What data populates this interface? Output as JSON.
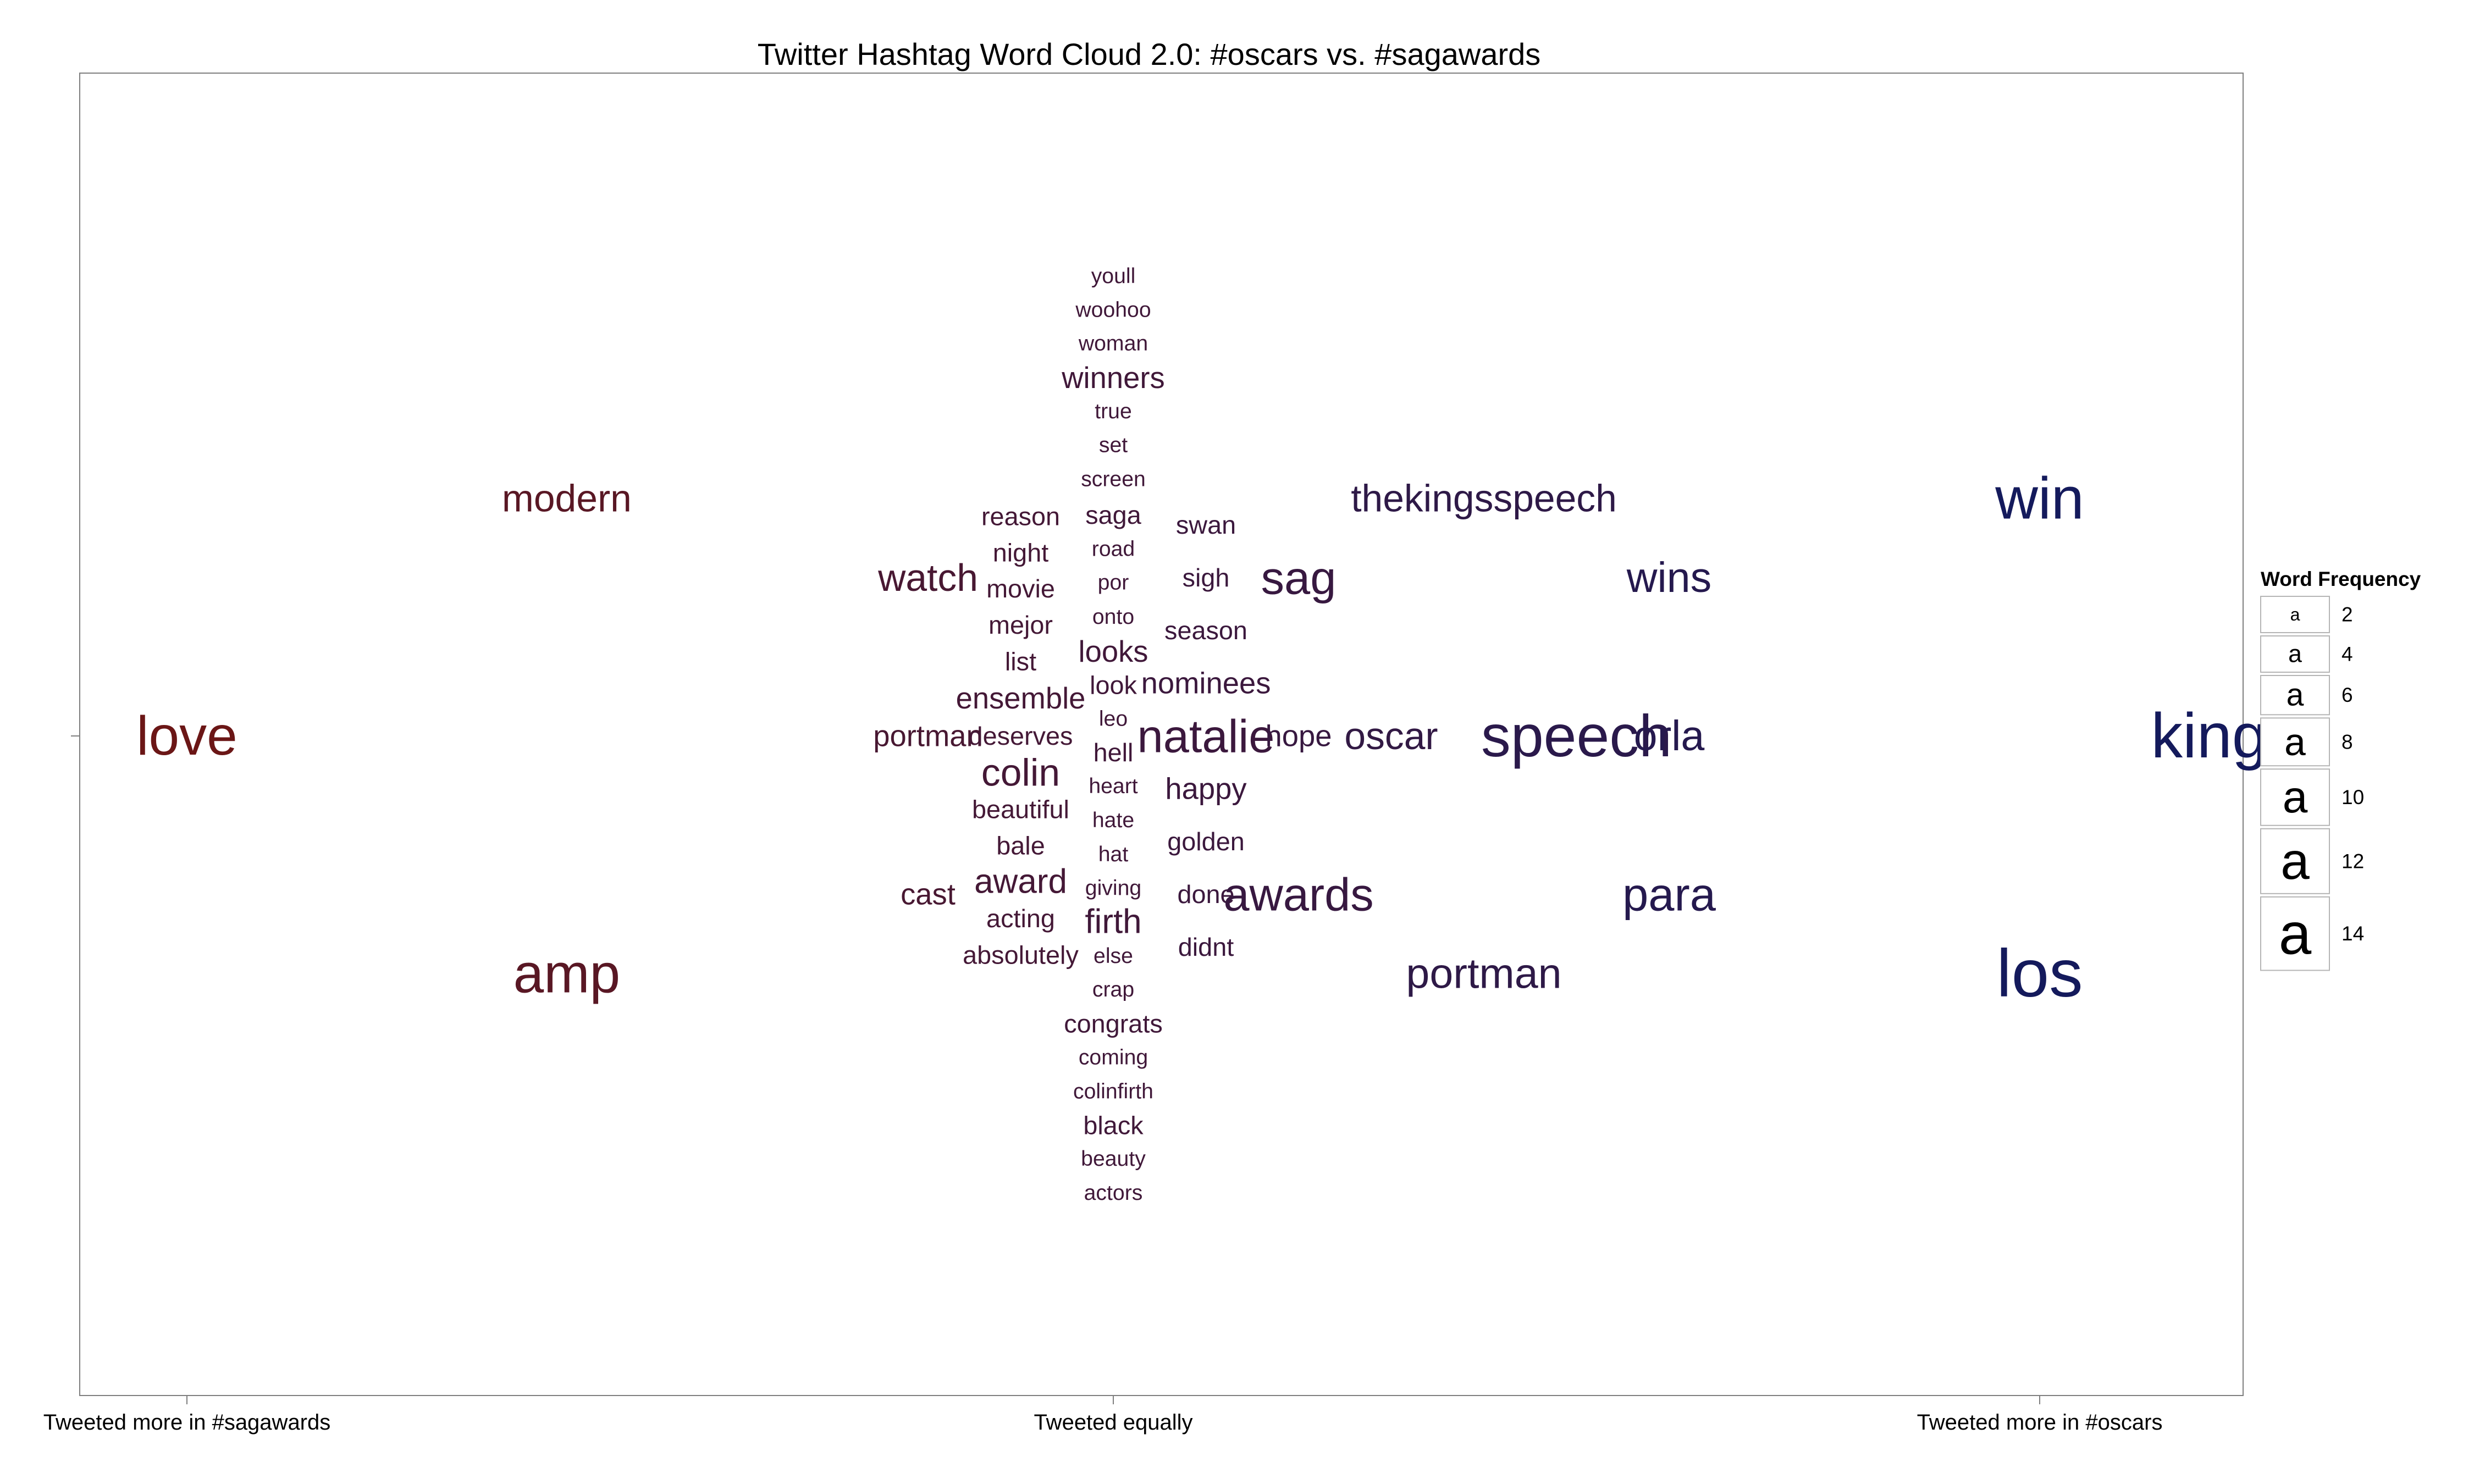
{
  "chart_data": {
    "type": "scatter",
    "title": "Twitter Hashtag Word Cloud 2.0: #oscars vs. #sagawards",
    "xlabel": "",
    "ylabel": "",
    "xlim": [
      -1.1,
      1.2
    ],
    "ylim": [
      -1.0,
      1.0
    ],
    "x_ticks": [
      {
        "value": -1,
        "label": "Tweeted more in #sagawards"
      },
      {
        "value": 0,
        "label": "Tweeted equally"
      },
      {
        "value": 1,
        "label": "Tweeted more in #oscars"
      }
    ],
    "y_ticks": [
      0
    ],
    "grid": false,
    "color_low": "#6B1616",
    "color_high": "#141A5C",
    "legend": {
      "title": "Word Frequency",
      "placement": "right",
      "entries": [
        {
          "glyph": "a",
          "value": 2
        },
        {
          "glyph": "a",
          "value": 4
        },
        {
          "glyph": "a",
          "value": 6
        },
        {
          "glyph": "a",
          "value": 8
        },
        {
          "glyph": "a",
          "value": 10
        },
        {
          "glyph": "a",
          "value": 12
        },
        {
          "glyph": "a",
          "value": 14
        }
      ]
    },
    "words": [
      {
        "text": "love",
        "x": -1.0,
        "y": 0.0,
        "freq": 10
      },
      {
        "text": "amp",
        "x": -0.59,
        "y": -0.473,
        "freq": 10
      },
      {
        "text": "modern",
        "x": -0.59,
        "y": 0.473,
        "freq": 6
      },
      {
        "text": "watch",
        "x": -0.2,
        "y": 0.315,
        "freq": 6
      },
      {
        "text": "cast",
        "x": -0.2,
        "y": -0.315,
        "freq": 4
      },
      {
        "text": "portman",
        "x": -0.2,
        "y": 0.0,
        "freq": 4
      },
      {
        "text": "reason",
        "x": -0.1,
        "y": 0.437,
        "freq": 3
      },
      {
        "text": "night",
        "x": -0.1,
        "y": 0.365,
        "freq": 3
      },
      {
        "text": "movie",
        "x": -0.1,
        "y": 0.293,
        "freq": 3
      },
      {
        "text": "mejor",
        "x": -0.1,
        "y": 0.221,
        "freq": 3
      },
      {
        "text": "list",
        "x": -0.1,
        "y": 0.148,
        "freq": 3
      },
      {
        "text": "ensemble",
        "x": -0.1,
        "y": 0.075,
        "freq": 4
      },
      {
        "text": "deserves",
        "x": -0.1,
        "y": 0.0,
        "freq": 3
      },
      {
        "text": "colin",
        "x": -0.1,
        "y": -0.073,
        "freq": 6
      },
      {
        "text": "beautiful",
        "x": -0.1,
        "y": -0.146,
        "freq": 3
      },
      {
        "text": "bale",
        "x": -0.1,
        "y": -0.218,
        "freq": 3
      },
      {
        "text": "award",
        "x": -0.1,
        "y": -0.29,
        "freq": 5
      },
      {
        "text": "acting",
        "x": -0.1,
        "y": -0.363,
        "freq": 3
      },
      {
        "text": "absolutely",
        "x": -0.1,
        "y": -0.436,
        "freq": 3
      },
      {
        "text": "youll",
        "x": 0.0,
        "y": 0.915,
        "freq": 2
      },
      {
        "text": "woohoo",
        "x": 0.0,
        "y": 0.848,
        "freq": 2
      },
      {
        "text": "woman",
        "x": 0.0,
        "y": 0.781,
        "freq": 2
      },
      {
        "text": "winners",
        "x": 0.0,
        "y": 0.713,
        "freq": 4
      },
      {
        "text": "true",
        "x": 0.0,
        "y": 0.646,
        "freq": 2
      },
      {
        "text": "set",
        "x": 0.0,
        "y": 0.579,
        "freq": 2
      },
      {
        "text": "screen",
        "x": 0.0,
        "y": 0.511,
        "freq": 2
      },
      {
        "text": "saga",
        "x": 0.0,
        "y": 0.44,
        "freq": 3
      },
      {
        "text": "road",
        "x": 0.0,
        "y": 0.372,
        "freq": 2
      },
      {
        "text": "por",
        "x": 0.0,
        "y": 0.305,
        "freq": 2
      },
      {
        "text": "onto",
        "x": 0.0,
        "y": 0.237,
        "freq": 2
      },
      {
        "text": "looks",
        "x": 0.0,
        "y": 0.168,
        "freq": 4
      },
      {
        "text": "look",
        "x": 0.0,
        "y": 0.101,
        "freq": 3
      },
      {
        "text": "leo",
        "x": 0.0,
        "y": 0.034,
        "freq": 2
      },
      {
        "text": "hell",
        "x": 0.0,
        "y": -0.033,
        "freq": 3
      },
      {
        "text": "heart",
        "x": 0.0,
        "y": -0.1,
        "freq": 2
      },
      {
        "text": "hate",
        "x": 0.0,
        "y": -0.168,
        "freq": 2
      },
      {
        "text": "hat",
        "x": 0.0,
        "y": -0.236,
        "freq": 2
      },
      {
        "text": "giving",
        "x": 0.0,
        "y": -0.303,
        "freq": 2
      },
      {
        "text": "firth",
        "x": 0.0,
        "y": -0.37,
        "freq": 5
      },
      {
        "text": "else",
        "x": 0.0,
        "y": -0.438,
        "freq": 2
      },
      {
        "text": "crap",
        "x": 0.0,
        "y": -0.505,
        "freq": 2
      },
      {
        "text": "congrats",
        "x": 0.0,
        "y": -0.573,
        "freq": 3
      },
      {
        "text": "coming",
        "x": 0.0,
        "y": -0.64,
        "freq": 2
      },
      {
        "text": "colinfirth",
        "x": 0.0,
        "y": -0.708,
        "freq": 2
      },
      {
        "text": "black",
        "x": 0.0,
        "y": -0.775,
        "freq": 3
      },
      {
        "text": "beauty",
        "x": 0.0,
        "y": -0.842,
        "freq": 2
      },
      {
        "text": "actors",
        "x": 0.0,
        "y": -0.91,
        "freq": 2
      },
      {
        "text": "swan",
        "x": 0.1,
        "y": 0.42,
        "freq": 3
      },
      {
        "text": "sigh",
        "x": 0.1,
        "y": 0.315,
        "freq": 3
      },
      {
        "text": "season",
        "x": 0.1,
        "y": 0.21,
        "freq": 3
      },
      {
        "text": "nominees",
        "x": 0.1,
        "y": 0.105,
        "freq": 4
      },
      {
        "text": "natalie",
        "x": 0.1,
        "y": 0.0,
        "freq": 8
      },
      {
        "text": "happy",
        "x": 0.1,
        "y": -0.105,
        "freq": 4
      },
      {
        "text": "golden",
        "x": 0.1,
        "y": -0.21,
        "freq": 3
      },
      {
        "text": "done",
        "x": 0.1,
        "y": -0.315,
        "freq": 3
      },
      {
        "text": "didnt",
        "x": 0.1,
        "y": -0.42,
        "freq": 3
      },
      {
        "text": "hope",
        "x": 0.2,
        "y": 0.0,
        "freq": 4
      },
      {
        "text": "sag",
        "x": 0.2,
        "y": 0.315,
        "freq": 8
      },
      {
        "text": "awards",
        "x": 0.2,
        "y": -0.315,
        "freq": 8
      },
      {
        "text": "oscar",
        "x": 0.3,
        "y": 0.0,
        "freq": 6
      },
      {
        "text": "thekingsspeech",
        "x": 0.4,
        "y": 0.473,
        "freq": 6
      },
      {
        "text": "portman",
        "x": 0.4,
        "y": -0.473,
        "freq": 7
      },
      {
        "text": "speech",
        "x": 0.5,
        "y": 0.0,
        "freq": 11
      },
      {
        "text": "wins",
        "x": 0.6,
        "y": 0.315,
        "freq": 7
      },
      {
        "text": "para",
        "x": 0.6,
        "y": -0.315,
        "freq": 8
      },
      {
        "text": "orla",
        "x": 0.6,
        "y": 0.0,
        "freq": 7
      },
      {
        "text": "win",
        "x": 1.0,
        "y": 0.473,
        "freq": 11
      },
      {
        "text": "los",
        "x": 1.0,
        "y": -0.473,
        "freq": 13
      },
      {
        "text": "kings",
        "x": 1.2,
        "y": 0.0,
        "freq": 12
      }
    ]
  }
}
